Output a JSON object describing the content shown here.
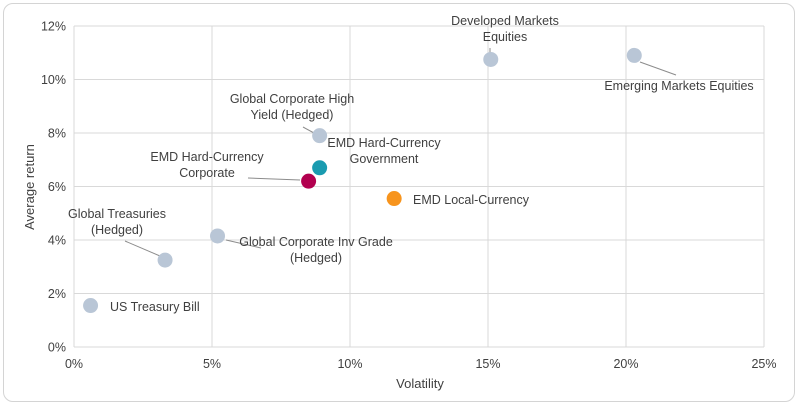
{
  "chart_data": {
    "type": "scatter",
    "title": "",
    "xlabel": "Volatility",
    "ylabel": "Average return",
    "xlim": [
      0,
      25
    ],
    "ylim": [
      0,
      12
    ],
    "x_ticks": [
      0,
      5,
      10,
      15,
      20,
      25
    ],
    "y_ticks": [
      0,
      2,
      4,
      6,
      8,
      10,
      12
    ],
    "x_tick_labels": [
      "0%",
      "5%",
      "10%",
      "15%",
      "20%",
      "25%"
    ],
    "y_tick_labels": [
      "0%",
      "2%",
      "4%",
      "6%",
      "8%",
      "10%",
      "12%"
    ],
    "grid": "vertical and horizontal",
    "points": [
      {
        "name": "US Treasury Bill",
        "label_lines": [
          "US Treasury Bill"
        ],
        "x": 0.6,
        "y": 1.55,
        "color": "#b9c6d6"
      },
      {
        "name": "Global Treasuries (Hedged)",
        "label_lines": [
          "Global Treasuries",
          "(Hedged)"
        ],
        "x": 3.3,
        "y": 3.25,
        "color": "#b9c6d6"
      },
      {
        "name": "Global Corporate Inv Grade (Hedged)",
        "label_lines": [
          "Global Corporate Inv Grade",
          "(Hedged)"
        ],
        "x": 5.2,
        "y": 4.15,
        "color": "#b9c6d6"
      },
      {
        "name": "Global Corporate High Yield (Hedged)",
        "label_lines": [
          "Global Corporate High",
          "Yield (Hedged)"
        ],
        "x": 8.9,
        "y": 7.9,
        "color": "#b9c6d6"
      },
      {
        "name": "EMD Hard-Currency Government",
        "label_lines": [
          "EMD Hard-Currency",
          "Government"
        ],
        "x": 8.9,
        "y": 6.7,
        "color": "#1a9bb0"
      },
      {
        "name": "EMD Hard-Currency Corporate",
        "label_lines": [
          "EMD Hard-Currency",
          "Corporate"
        ],
        "x": 8.5,
        "y": 6.2,
        "color": "#b2004f"
      },
      {
        "name": "EMD Local-Currency",
        "label_lines": [
          "EMD Local-Currency"
        ],
        "x": 11.6,
        "y": 5.55,
        "color": "#f7941d"
      },
      {
        "name": "Developed Markets Equities",
        "label_lines": [
          "Developed Markets",
          "Equities"
        ],
        "x": 15.1,
        "y": 10.75,
        "color": "#b9c6d6"
      },
      {
        "name": "Emerging Markets Equities",
        "label_lines": [
          "Emerging Markets Equities"
        ],
        "x": 20.3,
        "y": 10.9,
        "color": "#b9c6d6"
      }
    ]
  }
}
